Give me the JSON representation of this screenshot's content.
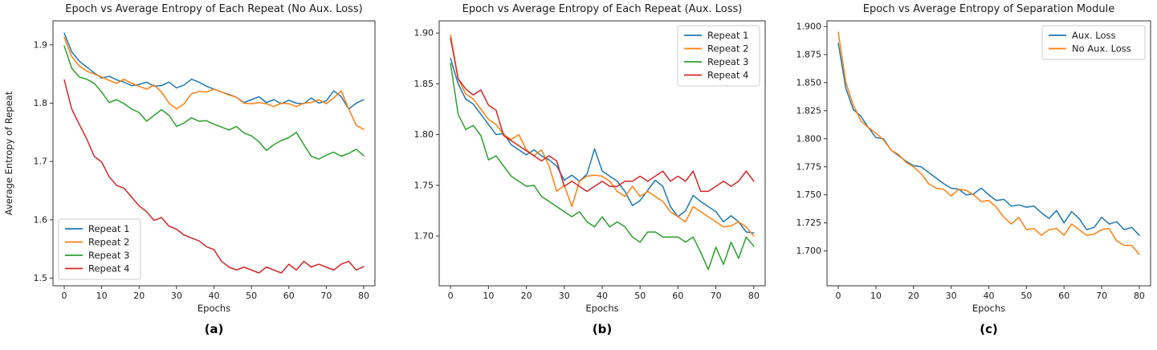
{
  "figure": {
    "background": "#ffffff"
  },
  "chart_data": [
    {
      "type": "line",
      "title": "Epoch vs Average Entropy of Each Repeat (No Aux. Loss)",
      "xlabel": "Epochs",
      "ylabel": "Average Entropy of Repeat",
      "caption": "(a)",
      "xlim": [
        -3,
        83
      ],
      "ylim": [
        1.487,
        1.941
      ],
      "x_tick_labels": [
        "0",
        "10",
        "20",
        "30",
        "40",
        "50",
        "60",
        "70",
        "80"
      ],
      "y_tick_labels": [
        "1.5",
        "1.6",
        "1.7",
        "1.8",
        "1.9"
      ],
      "grid": false,
      "legend_position": "lower-left",
      "x": [
        0,
        2,
        4,
        6,
        8,
        10,
        12,
        14,
        16,
        18,
        20,
        22,
        24,
        26,
        28,
        30,
        32,
        34,
        36,
        38,
        40,
        42,
        44,
        46,
        48,
        50,
        52,
        54,
        56,
        58,
        60,
        62,
        64,
        66,
        68,
        70,
        72,
        74,
        76,
        78,
        80
      ],
      "series": [
        {
          "name": "Repeat 1",
          "color": "#1f77b4",
          "values": [
            1.92,
            1.888,
            1.872,
            1.862,
            1.852,
            1.843,
            1.846,
            1.84,
            1.836,
            1.83,
            1.832,
            1.836,
            1.829,
            1.83,
            1.836,
            1.826,
            1.831,
            1.841,
            1.836,
            1.829,
            1.824,
            1.819,
            1.815,
            1.81,
            1.801,
            1.806,
            1.811,
            1.801,
            1.806,
            1.799,
            1.805,
            1.8,
            1.799,
            1.809,
            1.8,
            1.804,
            1.821,
            1.811,
            1.79,
            1.8,
            1.806
          ]
        },
        {
          "name": "Repeat 2",
          "color": "#ff7f0e",
          "values": [
            1.913,
            1.88,
            1.864,
            1.855,
            1.85,
            1.845,
            1.839,
            1.834,
            1.841,
            1.834,
            1.829,
            1.824,
            1.831,
            1.819,
            1.8,
            1.79,
            1.799,
            1.816,
            1.82,
            1.819,
            1.824,
            1.819,
            1.814,
            1.81,
            1.8,
            1.799,
            1.801,
            1.799,
            1.794,
            1.8,
            1.799,
            1.794,
            1.8,
            1.801,
            1.806,
            1.799,
            1.809,
            1.821,
            1.79,
            1.762,
            1.755
          ]
        },
        {
          "name": "Repeat 3",
          "color": "#2ca02c",
          "values": [
            1.898,
            1.86,
            1.845,
            1.841,
            1.834,
            1.819,
            1.801,
            1.806,
            1.799,
            1.79,
            1.784,
            1.769,
            1.779,
            1.789,
            1.779,
            1.76,
            1.766,
            1.775,
            1.769,
            1.77,
            1.764,
            1.759,
            1.754,
            1.76,
            1.749,
            1.744,
            1.734,
            1.719,
            1.729,
            1.736,
            1.741,
            1.75,
            1.729,
            1.709,
            1.704,
            1.711,
            1.716,
            1.709,
            1.714,
            1.721,
            1.71
          ]
        },
        {
          "name": "Repeat 4",
          "color": "#d62728",
          "values": [
            1.84,
            1.79,
            1.764,
            1.739,
            1.709,
            1.699,
            1.674,
            1.659,
            1.654,
            1.639,
            1.624,
            1.614,
            1.599,
            1.604,
            1.589,
            1.584,
            1.574,
            1.569,
            1.564,
            1.554,
            1.549,
            1.529,
            1.519,
            1.514,
            1.519,
            1.514,
            1.509,
            1.519,
            1.514,
            1.509,
            1.524,
            1.514,
            1.529,
            1.519,
            1.524,
            1.519,
            1.514,
            1.524,
            1.529,
            1.514,
            1.52
          ]
        }
      ]
    },
    {
      "type": "line",
      "title": "Epoch vs Average Entropy of Each Repeat (Aux. Loss)",
      "xlabel": "Epochs",
      "ylabel": "",
      "caption": "(b)",
      "xlim": [
        -3,
        83
      ],
      "ylim": [
        1.651,
        1.912
      ],
      "x_tick_labels": [
        "0",
        "10",
        "20",
        "30",
        "40",
        "50",
        "60",
        "70",
        "80"
      ],
      "y_tick_labels": [
        "1.70",
        "1.75",
        "1.80",
        "1.85",
        "1.90"
      ],
      "grid": false,
      "legend_position": "upper-right",
      "x": [
        0,
        2,
        4,
        6,
        8,
        10,
        12,
        14,
        16,
        18,
        20,
        22,
        24,
        26,
        28,
        30,
        32,
        34,
        36,
        38,
        40,
        42,
        44,
        46,
        48,
        50,
        52,
        54,
        56,
        58,
        60,
        62,
        64,
        66,
        68,
        70,
        72,
        74,
        76,
        78,
        80
      ],
      "series": [
        {
          "name": "Repeat 1",
          "color": "#1f77b4",
          "values": [
            1.875,
            1.85,
            1.835,
            1.83,
            1.82,
            1.81,
            1.8,
            1.801,
            1.79,
            1.785,
            1.78,
            1.785,
            1.779,
            1.775,
            1.769,
            1.755,
            1.76,
            1.754,
            1.761,
            1.786,
            1.764,
            1.759,
            1.754,
            1.744,
            1.73,
            1.735,
            1.745,
            1.755,
            1.749,
            1.729,
            1.719,
            1.725,
            1.74,
            1.734,
            1.729,
            1.724,
            1.714,
            1.72,
            1.714,
            1.704,
            1.703
          ]
        },
        {
          "name": "Repeat 2",
          "color": "#ff7f0e",
          "values": [
            1.898,
            1.855,
            1.84,
            1.835,
            1.825,
            1.815,
            1.81,
            1.8,
            1.795,
            1.8,
            1.785,
            1.779,
            1.785,
            1.769,
            1.744,
            1.75,
            1.729,
            1.754,
            1.759,
            1.76,
            1.759,
            1.754,
            1.744,
            1.739,
            1.749,
            1.739,
            1.744,
            1.739,
            1.734,
            1.724,
            1.719,
            1.714,
            1.729,
            1.724,
            1.719,
            1.714,
            1.709,
            1.71,
            1.714,
            1.709,
            1.7
          ]
        },
        {
          "name": "Repeat 3",
          "color": "#2ca02c",
          "values": [
            1.87,
            1.82,
            1.805,
            1.809,
            1.799,
            1.775,
            1.779,
            1.769,
            1.759,
            1.754,
            1.749,
            1.75,
            1.739,
            1.734,
            1.729,
            1.724,
            1.719,
            1.724,
            1.714,
            1.709,
            1.719,
            1.709,
            1.714,
            1.709,
            1.699,
            1.694,
            1.704,
            1.704,
            1.699,
            1.699,
            1.699,
            1.694,
            1.699,
            1.684,
            1.667,
            1.689,
            1.672,
            1.694,
            1.678,
            1.699,
            1.69
          ]
        },
        {
          "name": "Repeat 4",
          "color": "#d62728",
          "values": [
            1.895,
            1.855,
            1.845,
            1.839,
            1.844,
            1.829,
            1.824,
            1.799,
            1.794,
            1.789,
            1.784,
            1.779,
            1.774,
            1.779,
            1.774,
            1.749,
            1.754,
            1.749,
            1.744,
            1.749,
            1.754,
            1.749,
            1.749,
            1.754,
            1.754,
            1.759,
            1.754,
            1.759,
            1.764,
            1.754,
            1.759,
            1.754,
            1.764,
            1.744,
            1.744,
            1.749,
            1.754,
            1.749,
            1.754,
            1.764,
            1.754
          ]
        }
      ]
    },
    {
      "type": "line",
      "title": "Epoch vs Average Entropy of Separation Module",
      "xlabel": "Epochs",
      "ylabel": "",
      "caption": "(c)",
      "xlim": [
        -3,
        83
      ],
      "ylim": [
        1.669,
        1.905
      ],
      "x_tick_labels": [
        "0",
        "10",
        "20",
        "30",
        "40",
        "50",
        "60",
        "70",
        "80"
      ],
      "y_tick_labels": [
        "1.700",
        "1.725",
        "1.750",
        "1.775",
        "1.800",
        "1.825",
        "1.850",
        "1.875",
        "1.900"
      ],
      "grid": false,
      "legend_position": "upper-right",
      "x": [
        0,
        2,
        4,
        6,
        8,
        10,
        12,
        14,
        16,
        18,
        20,
        22,
        24,
        26,
        28,
        30,
        32,
        34,
        36,
        38,
        40,
        42,
        44,
        46,
        48,
        50,
        52,
        54,
        56,
        58,
        60,
        62,
        64,
        66,
        68,
        70,
        72,
        74,
        76,
        78,
        80
      ],
      "series": [
        {
          "name": "Aux. Loss",
          "color": "#1f77b4",
          "values": [
            1.885,
            1.845,
            1.826,
            1.82,
            1.81,
            1.801,
            1.8,
            1.79,
            1.785,
            1.78,
            1.776,
            1.775,
            1.77,
            1.765,
            1.76,
            1.756,
            1.755,
            1.75,
            1.751,
            1.756,
            1.75,
            1.745,
            1.746,
            1.74,
            1.741,
            1.739,
            1.74,
            1.734,
            1.729,
            1.736,
            1.725,
            1.735,
            1.729,
            1.719,
            1.721,
            1.73,
            1.724,
            1.726,
            1.719,
            1.721,
            1.714
          ]
        },
        {
          "name": "No Aux. Loss",
          "color": "#ff7f0e",
          "values": [
            1.895,
            1.85,
            1.83,
            1.816,
            1.81,
            1.805,
            1.799,
            1.79,
            1.786,
            1.779,
            1.775,
            1.769,
            1.76,
            1.756,
            1.755,
            1.749,
            1.755,
            1.754,
            1.75,
            1.744,
            1.745,
            1.739,
            1.73,
            1.724,
            1.73,
            1.719,
            1.72,
            1.714,
            1.719,
            1.72,
            1.714,
            1.724,
            1.719,
            1.714,
            1.715,
            1.719,
            1.72,
            1.709,
            1.705,
            1.705,
            1.697
          ]
        }
      ]
    }
  ]
}
